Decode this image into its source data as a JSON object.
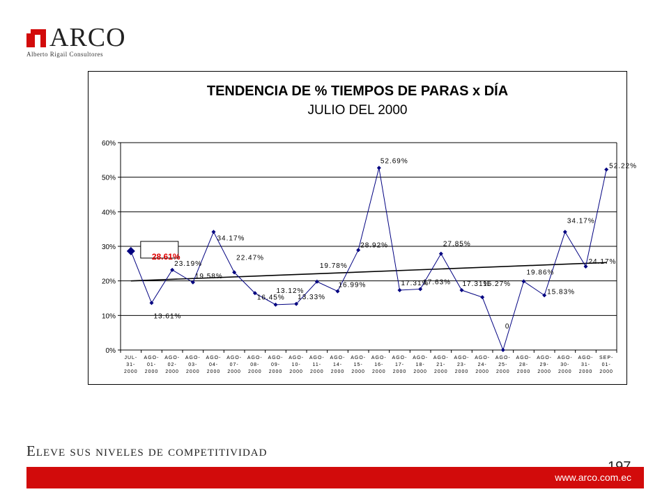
{
  "logo": {
    "brand": "ARCO",
    "subtitle": "Alberto Rigail Consultores"
  },
  "footer": {
    "slogan": "Eleve sus niveles de competitividad",
    "page_number": "197",
    "url": "www.arco.com.ec"
  },
  "colors": {
    "brand_red": "#d20b0b",
    "series": "#000080",
    "highlight": "#e00000"
  },
  "chart_data": {
    "type": "line",
    "title": "TENDENCIA DE % TIEMPOS DE PARAS x DÍA",
    "subtitle": "JULIO DEL 2000",
    "ylim": [
      0,
      60
    ],
    "yticks": [
      "0%",
      "10%",
      "20%",
      "30%",
      "40%",
      "50%",
      "60%"
    ],
    "grid": true,
    "categories": [
      [
        "JUL-",
        "31-",
        "2000"
      ],
      [
        "AGO-",
        "01-",
        "2000"
      ],
      [
        "AGO-",
        "02-",
        "2000"
      ],
      [
        "AGO-",
        "03-",
        "2000"
      ],
      [
        "AGO-",
        "04-",
        "2000"
      ],
      [
        "AGO-",
        "07-",
        "2000"
      ],
      [
        "AGO-",
        "08-",
        "2000"
      ],
      [
        "AGO-",
        "09-",
        "2000"
      ],
      [
        "AGO-",
        "10-",
        "2000"
      ],
      [
        "AGO-",
        "11-",
        "2000"
      ],
      [
        "AGO-",
        "14-",
        "2000"
      ],
      [
        "AGO-",
        "15-",
        "2000"
      ],
      [
        "AGO-",
        "16-",
        "2000"
      ],
      [
        "AGO-",
        "17-",
        "2000"
      ],
      [
        "AGO-",
        "18-",
        "2000"
      ],
      [
        "AGO-",
        "21-",
        "2000"
      ],
      [
        "AGO-",
        "23-",
        "2000"
      ],
      [
        "AGO-",
        "24-",
        "2000"
      ],
      [
        "AGO-",
        "25-",
        "2000"
      ],
      [
        "AGO-",
        "28-",
        "2000"
      ],
      [
        "AGO-",
        "29-",
        "2000"
      ],
      [
        "AGO-",
        "30-",
        "2000"
      ],
      [
        "AGO-",
        "31-",
        "2000"
      ],
      [
        "SEP-",
        "01-",
        "2000"
      ]
    ],
    "values": [
      28.61,
      13.61,
      23.19,
      19.58,
      34.17,
      22.47,
      16.45,
      13.12,
      13.33,
      19.78,
      16.99,
      28.92,
      52.69,
      17.31,
      17.63,
      27.85,
      17.31,
      15.27,
      0,
      19.86,
      15.83,
      34.17,
      24.17,
      52.22
    ],
    "data_labels": [
      "28.61%",
      "13.61%",
      "23.19%",
      "19.58%",
      "34.17%",
      "22.47%",
      "16.45%",
      "13.12%",
      "13.33%",
      "19.78%",
      "16.99%",
      "28.92%",
      "52.69%",
      "17.31%",
      "17.63%",
      "27.85%",
      "17.31%",
      "15.27%",
      "0",
      "19.86%",
      "15.83%",
      "34.17%",
      "24.17%",
      "52.22%"
    ],
    "highlighted_point": 0,
    "trendline": {
      "start": 20.0,
      "end": 25.3
    }
  }
}
